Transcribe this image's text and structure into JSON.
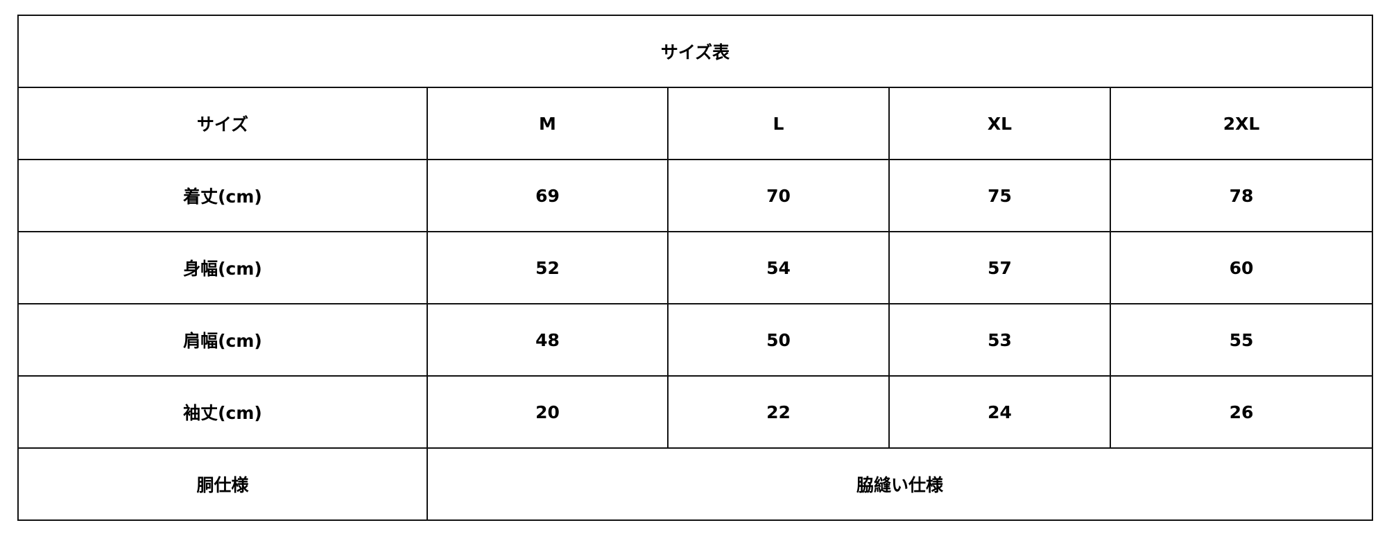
{
  "title": "サイズ表",
  "header": {
    "label": "サイズ",
    "sizes": [
      "M",
      "L",
      "XL",
      "2XL"
    ]
  },
  "rows": [
    {
      "label": "着丈(cm)",
      "values": [
        "69",
        "70",
        "75",
        "78"
      ]
    },
    {
      "label": "身幅(cm)",
      "values": [
        "52",
        "54",
        "57",
        "60"
      ]
    },
    {
      "label": "肩幅(cm)",
      "values": [
        "48",
        "50",
        "53",
        "55"
      ]
    },
    {
      "label": "袖丈(cm)",
      "values": [
        "20",
        "22",
        "24",
        "26"
      ]
    }
  ],
  "footer": {
    "label": "胴仕様",
    "value": "脇縫い仕様"
  }
}
